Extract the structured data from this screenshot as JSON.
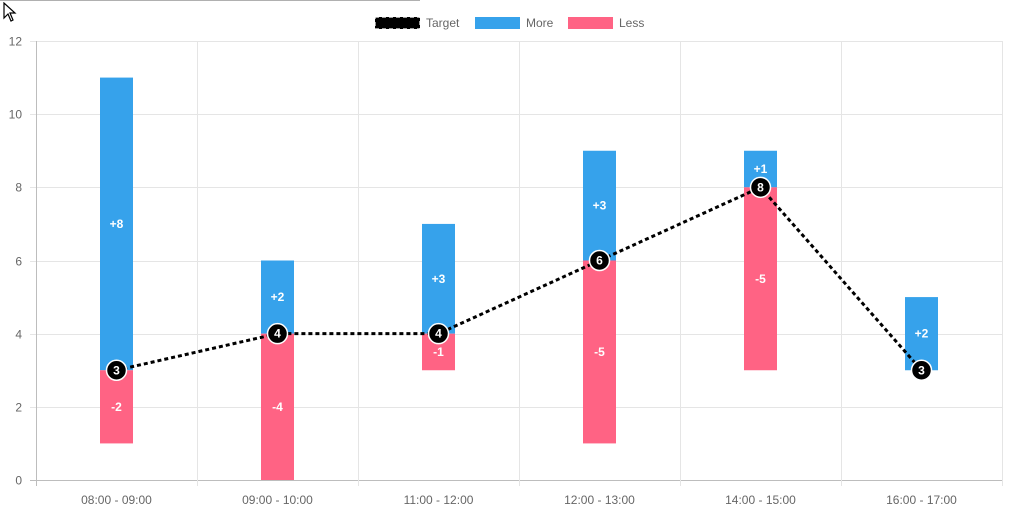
{
  "chart_data": {
    "type": "bar",
    "categories": [
      "08:00 - 09:00",
      "09:00 - 10:00",
      "11:00 - 12:00",
      "12:00 - 13:00",
      "14:00 - 15:00",
      "16:00 - 17:00"
    ],
    "target": [
      3,
      4,
      4,
      6,
      8,
      3
    ],
    "series": [
      {
        "name": "More",
        "color": "#36a2eb",
        "ranges": [
          [
            3,
            11
          ],
          [
            4,
            6
          ],
          [
            4,
            7
          ],
          [
            6,
            9
          ],
          [
            8,
            9
          ],
          [
            3,
            5
          ]
        ],
        "labels": [
          "+8",
          "+2",
          "+3",
          "+3",
          "+1",
          "+2"
        ]
      },
      {
        "name": "Less",
        "color": "#ff6384",
        "ranges": [
          [
            1,
            3
          ],
          [
            0,
            4
          ],
          [
            3,
            4
          ],
          [
            1,
            6
          ],
          [
            3,
            8
          ],
          null
        ],
        "labels": [
          "-2",
          "-4",
          "-1",
          "-5",
          "-5",
          null
        ]
      }
    ],
    "line_series": {
      "name": "Target",
      "color": "#000000",
      "style": "dotted",
      "point_labels": [
        "3",
        "4",
        "4",
        "6",
        "8",
        "3"
      ]
    },
    "yticks": [
      "0",
      "2",
      "4",
      "6",
      "8",
      "10",
      "12"
    ],
    "ylim": [
      0,
      12
    ],
    "grid": true,
    "legend": "top-center",
    "title": "",
    "xlabel": "",
    "ylabel": ""
  }
}
